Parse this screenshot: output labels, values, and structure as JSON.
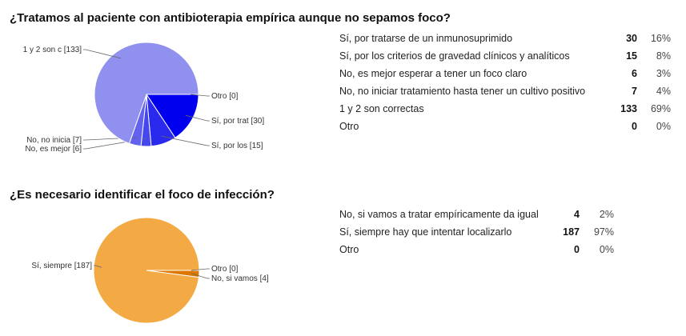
{
  "questions": [
    {
      "title": "¿Tratamos al paciente con antibioterapia empírica aunque no sepamos foco?",
      "rows": [
        {
          "label": "Sí, por tratarse de un inmunosuprimido",
          "count": "30",
          "percent": "16%"
        },
        {
          "label": "Sí, por los criterios de gravedad clínicos y analíticos",
          "count": "15",
          "percent": "8%"
        },
        {
          "label": "No, es mejor esperar a tener un foco claro",
          "count": "6",
          "percent": "3%"
        },
        {
          "label": "No, no iniciar tratamiento hasta tener un cultivo positivo",
          "count": "7",
          "percent": "4%"
        },
        {
          "label": "1 y 2 son correctas",
          "count": "133",
          "percent": "69%"
        },
        {
          "label": "Otro",
          "count": "0",
          "percent": "0%"
        }
      ]
    },
    {
      "title": "¿Es necesario identificar el foco de infección?",
      "rows": [
        {
          "label": "No, si vamos a tratar empíricamente da igual",
          "count": "4",
          "percent": "2%"
        },
        {
          "label": "Sí, siempre hay que intentar  localizarlo",
          "count": "187",
          "percent": "97%"
        },
        {
          "label": "Otro",
          "count": "0",
          "percent": "0%"
        }
      ]
    }
  ],
  "chart_data": [
    {
      "type": "pie",
      "title": "¿Tratamos al paciente con antibioterapia empírica aunque no sepamos foco?",
      "slices": [
        {
          "category": "Sí, por tratarse de un inmunosuprimido",
          "pie_label": "Sí, por trat [30]",
          "value": 30,
          "color": "#0000ee"
        },
        {
          "category": "Sí, por los criterios de gravedad clínicos y analíticos",
          "pie_label": "Sí, por los  [15]",
          "value": 15,
          "color": "#2a2aef"
        },
        {
          "category": "No, es mejor esperar a tener un foco claro",
          "pie_label": "No, es mejor  [6]",
          "value": 6,
          "color": "#4646ef"
        },
        {
          "category": "No, no iniciar tratamiento hasta tener un cultivo positivo",
          "pie_label": "No, no inicia [7]",
          "value": 7,
          "color": "#6262ef"
        },
        {
          "category": "1 y 2 son correctas",
          "pie_label": "1 y 2 son c [133]",
          "value": 133,
          "color": "#9090ee"
        },
        {
          "category": "Otro",
          "pie_label": "Otro [0]",
          "value": 0,
          "color": "#0000ee"
        }
      ]
    },
    {
      "type": "pie",
      "title": "¿Es necesario identificar el foco de infección?",
      "slices": [
        {
          "category": "No, si vamos a tratar empíricamente da igual",
          "pie_label": "No, si vamos  [4]",
          "value": 4,
          "color": "#dd7700"
        },
        {
          "category": "Sí, siempre hay que intentar  localizarlo",
          "pie_label": "Sí, siempre [187]",
          "value": 187,
          "color": "#f4aa44"
        },
        {
          "category": "Otro",
          "pie_label": "Otro [0]",
          "value": 0,
          "color": "#dd7700"
        }
      ]
    }
  ]
}
